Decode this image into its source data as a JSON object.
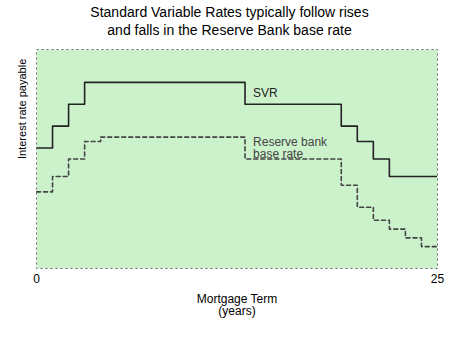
{
  "chart_data": {
    "type": "step",
    "title": "Standard Variable Rates typically follow rises\nand falls in the Reserve Bank base rate",
    "xlabel": "Mortgage Term\n(years)",
    "ylabel": "Interest rate payable",
    "xlim": [
      0,
      25
    ],
    "ylim": [
      0,
      10
    ],
    "xticks": [
      0,
      25
    ],
    "yticks": [],
    "tick_labels": "x",
    "series": [
      {
        "color": "#222222",
        "line_style": "solid",
        "x": [
          0,
          1,
          2,
          3,
          4,
          12,
          13,
          18,
          19,
          20,
          21,
          22,
          25
        ],
        "values": [
          5.5,
          6.5,
          7.5,
          8.5,
          8.5,
          8.5,
          7.5,
          7.5,
          6.5,
          5.8,
          5.0,
          4.2,
          4.2
        ]
      },
      {
        "color": "#444444",
        "line_style": "dashed",
        "x": [
          0,
          1,
          2,
          3,
          4,
          12,
          13,
          18,
          19,
          20,
          21,
          22,
          23,
          24,
          25
        ],
        "values": [
          3.5,
          4.2,
          5.0,
          5.8,
          6.0,
          6.0,
          5.0,
          5.0,
          3.8,
          2.8,
          2.2,
          1.8,
          1.4,
          1.0,
          1.0
        ]
      }
    ],
    "annotations": [
      {
        "text": "SVR",
        "x": 13.5,
        "y": 8.0,
        "color": "#222222"
      },
      {
        "text": "Reserve bank\nbase rate",
        "x": 13.5,
        "y": 5.5,
        "color": "#444444"
      }
    ]
  }
}
